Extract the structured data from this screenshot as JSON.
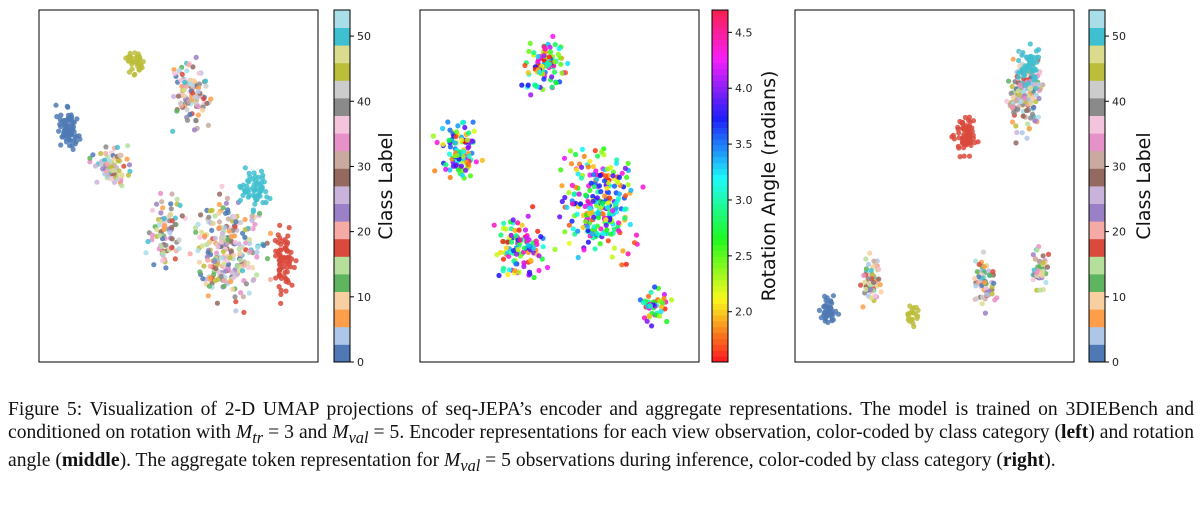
{
  "figure": {
    "panels": [
      {
        "name": "left",
        "colorbar": {
          "label": "Class Label",
          "ticks": [
            "0",
            "10",
            "20",
            "30",
            "40",
            "50"
          ],
          "range": [
            0,
            54
          ]
        }
      },
      {
        "name": "middle",
        "colorbar": {
          "label": "Rotation Angle (radians)",
          "ticks": [
            "2.0",
            "2.5",
            "3.0",
            "3.5",
            "4.0",
            "4.5"
          ],
          "range": [
            1.55,
            4.7
          ]
        }
      },
      {
        "name": "right",
        "colorbar": {
          "label": "Class Label",
          "ticks": [
            "0",
            "10",
            "20",
            "30",
            "40",
            "50"
          ],
          "range": [
            0,
            54
          ]
        }
      }
    ],
    "class_palette": [
      "#4e79b4",
      "#aec7e8",
      "#ff9e4a",
      "#f7cfa0",
      "#5fb45f",
      "#b5df9a",
      "#d94a3c",
      "#f5aaa6",
      "#9a80c6",
      "#c9b3da",
      "#94695f",
      "#c9a9a0",
      "#e691c8",
      "#f4c3dc",
      "#8a8a8a",
      "#cccccc",
      "#bcbd3a",
      "#dbdb8e",
      "#3fbfcf",
      "#a9dde8"
    ]
  },
  "caption": {
    "prefix": "Figure 5:",
    "s1": "Visualization of 2-D UMAP projections of seq-JEPA’s encoder and aggregate representations. The model is trained on 3DIEBench and conditioned on rotation with",
    "m_tr": "M",
    "m_tr_sub": "tr",
    "eq1": " = 3 and ",
    "m_val": "M",
    "m_val_sub": "val",
    "eq2": " = 5. Encoder representations for each view observation, color-coded by class category (",
    "left": "left",
    "s3": ") and rotation angle (",
    "middle": "middle",
    "s4": "). The aggregate token representation for ",
    "m_val2": "M",
    "m_val2_sub": "val",
    "eq3": " = 5 observations during inference, color-coded by class category (",
    "right": "right",
    "s5": ")."
  }
}
